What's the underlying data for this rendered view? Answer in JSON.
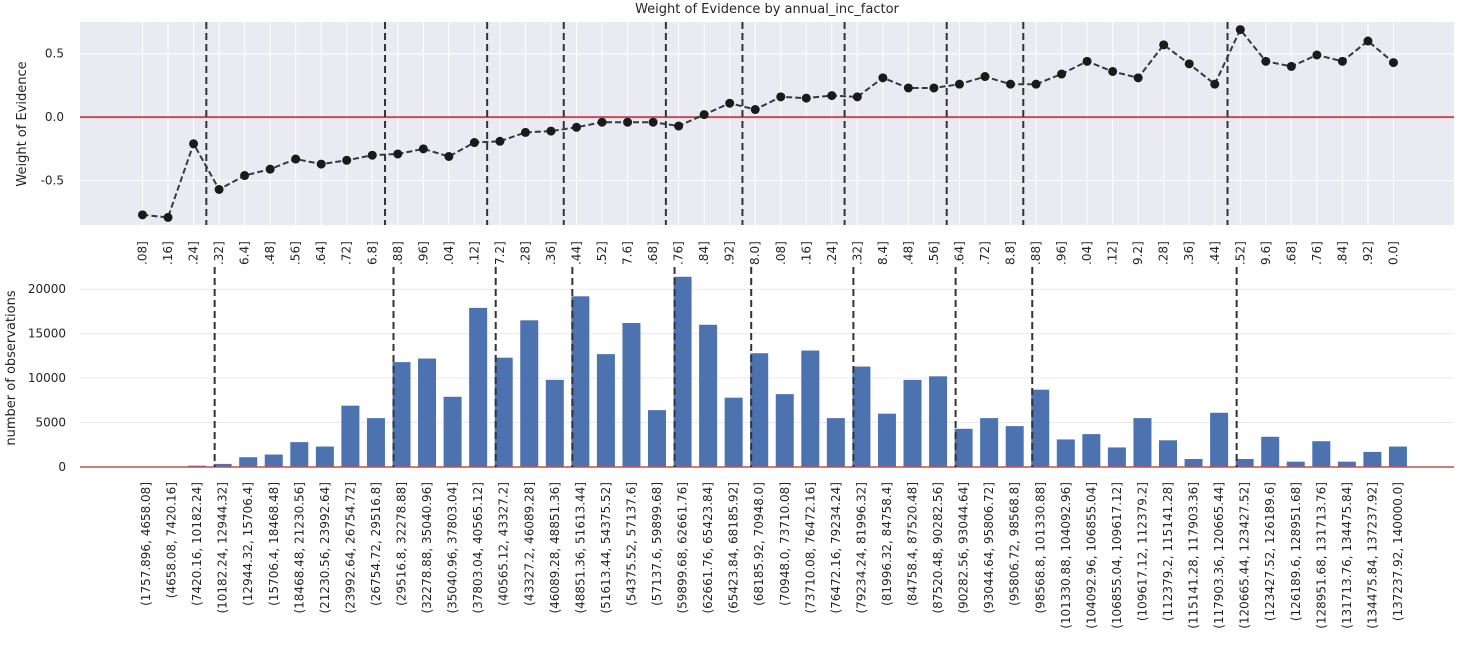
{
  "chart_data": [
    {
      "type": "line",
      "title": "Weight of Evidence by annual_inc_factor",
      "ylabel": "Weight of Evidence",
      "ylim": [
        -0.85,
        0.75
      ],
      "yticks": [
        -0.5,
        0.0,
        0.5
      ],
      "ytick_labels": [
        "-0.5",
        "0.0",
        "0.5"
      ],
      "grid": true,
      "categories": [
        ".08]",
        ".16]",
        ".24]",
        ".32]",
        "6.4]",
        ".48]",
        ".56]",
        ".64]",
        ".72]",
        "6.8]",
        ".88]",
        ".96]",
        ".04]",
        ".12]",
        "7.2]",
        ".28]",
        ".36]",
        ".44]",
        ".52]",
        "7.6]",
        ".68]",
        ".76]",
        ".84]",
        ".92]",
        "8.0]",
        ".08]",
        ".16]",
        ".24]",
        ".32]",
        "8.4]",
        ".48]",
        ".56]",
        ".64]",
        ".72]",
        "8.8]",
        ".88]",
        ".96]",
        ".04]",
        ".12]",
        "9.2]",
        ".28]",
        ".36]",
        ".44]",
        ".52]",
        "9.6]",
        ".68]",
        ".76]",
        ".84]",
        ".92]",
        "0.0]"
      ],
      "series": [
        {
          "values": [
            -0.77,
            -0.79,
            -0.21,
            -0.57,
            -0.46,
            -0.41,
            -0.33,
            -0.37,
            -0.34,
            -0.3,
            -0.29,
            -0.25,
            -0.31,
            -0.2,
            -0.19,
            -0.12,
            -0.11,
            -0.08,
            -0.04,
            -0.04,
            -0.04,
            -0.07,
            0.02,
            0.11,
            0.06,
            0.16,
            0.15,
            0.17,
            0.16,
            0.31,
            0.23,
            0.23,
            0.26,
            0.32,
            0.26,
            0.26,
            0.34,
            0.44,
            0.36,
            0.31,
            0.57,
            0.42,
            0.26,
            0.69,
            0.44,
            0.4,
            0.49,
            0.44,
            0.6,
            0.43
          ],
          "color": "#1a1a1a"
        }
      ],
      "reference_line": {
        "y": 0.0,
        "color": "#c44e52"
      },
      "vlines_at_index": [
        3,
        10,
        14,
        17,
        21,
        24,
        28,
        32,
        35,
        43
      ],
      "background": "#eaeaf2"
    },
    {
      "type": "bar",
      "ylabel": "number of observations",
      "ylim": [
        0,
        22500
      ],
      "yticks": [
        0,
        5000,
        10000,
        15000,
        20000
      ],
      "ytick_labels": [
        "0",
        "5000",
        "10000",
        "15000",
        "20000"
      ],
      "grid": true,
      "categories": [
        "(1757.896, 4658.08]",
        "(4658.08, 7420.16]",
        "(7420.16, 10182.24]",
        "(10182.24, 12944.32]",
        "(12944.32, 15706.4]",
        "(15706.4, 18468.48]",
        "(18468.48, 21230.56]",
        "(21230.56, 23992.64]",
        "(23992.64, 26754.72]",
        "(26754.72, 29516.8]",
        "(29516.8, 32278.88]",
        "(32278.88, 35040.96]",
        "(35040.96, 37803.04]",
        "(37803.04, 40565.12]",
        "(40565.12, 43327.2]",
        "(43327.2, 46089.28]",
        "(46089.28, 48851.36]",
        "(48851.36, 51613.44]",
        "(51613.44, 54375.52]",
        "(54375.52, 57137.6]",
        "(57137.6, 59899.68]",
        "(59899.68, 62661.76]",
        "(62661.76, 65423.84]",
        "(65423.84, 68185.92]",
        "(68185.92, 70948.0]",
        "(70948.0, 73710.08]",
        "(73710.08, 76472.16]",
        "(76472.16, 79234.24]",
        "(79234.24, 81996.32]",
        "(81996.32, 84758.4]",
        "(84758.4, 87520.48]",
        "(87520.48, 90282.56]",
        "(90282.56, 93044.64]",
        "(93044.64, 95806.72]",
        "(95806.72, 98568.8]",
        "(98568.8, 101330.88]",
        "(101330.88, 104092.96]",
        "(104092.96, 106855.04]",
        "(106855.04, 109617.12]",
        "(109617.12, 112379.2]",
        "(112379.2, 115141.28]",
        "(115141.28, 117903.36]",
        "(117903.36, 120665.44]",
        "(120665.44, 123427.52]",
        "(123427.52, 126189.6]",
        "(126189.6, 128951.68]",
        "(128951.68, 131713.76]",
        "(131713.76, 134475.84]",
        "(134475.84, 137237.92]",
        "(137237.92, 140000.0]"
      ],
      "series": [
        {
          "values": [
            15,
            60,
            150,
            350,
            1100,
            1400,
            2800,
            2300,
            6900,
            5500,
            11800,
            12200,
            7900,
            17900,
            12300,
            16500,
            9800,
            19200,
            12700,
            16200,
            6400,
            21400,
            16000,
            7800,
            12800,
            8200,
            13100,
            5500,
            11300,
            6000,
            9800,
            10200,
            4300,
            5500,
            4600,
            8700,
            3100,
            3700,
            2200,
            5500,
            3000,
            900,
            6100,
            900,
            3400,
            600,
            2900,
            600,
            1700,
            2300
          ],
          "color": "#4c72b0"
        }
      ],
      "reference_line": {
        "y": 0,
        "color": "#c44e52"
      },
      "vlines_at_index": [
        3,
        10,
        14,
        17,
        21,
        24,
        28,
        32,
        35,
        43
      ],
      "background": "#ffffff"
    }
  ]
}
